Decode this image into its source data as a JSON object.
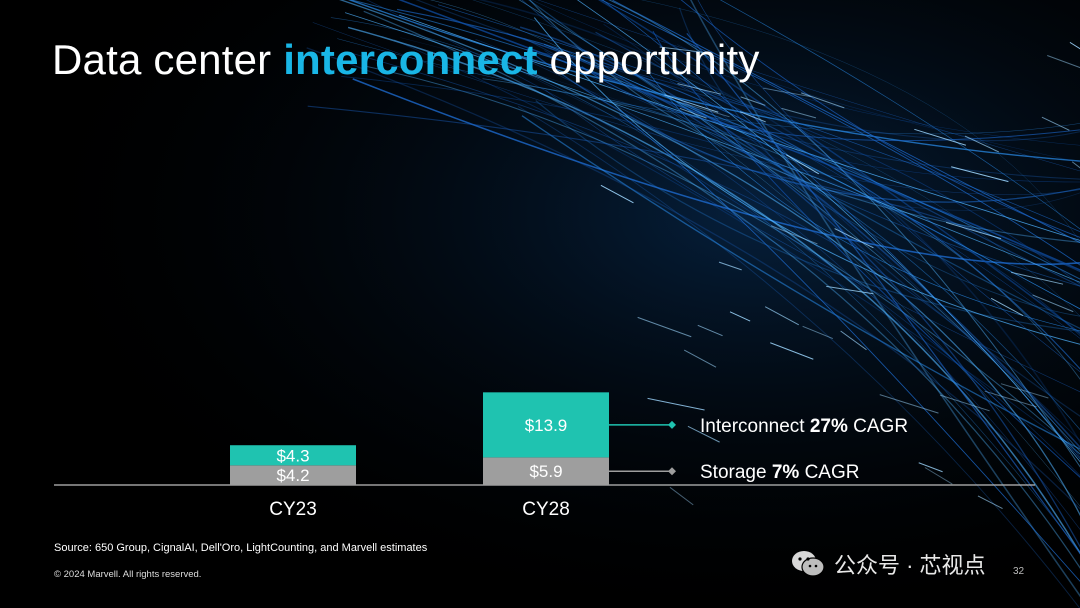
{
  "slide": {
    "title_pre": "Data center ",
    "title_highlight": "interconnect",
    "title_post": " opportunity",
    "source": "Source: 650 Group, CignalAI, Dell'Oro, LightCounting, and Marvell estimates",
    "copyright": "© 2024 Marvell. All rights reserved.",
    "page_number": "32",
    "watermark": "公众号 · 芯视点",
    "colors": {
      "interconnect": "#1fc3b0",
      "storage": "#9e9e9e",
      "accent": "#19b6e6"
    }
  },
  "chart_data": {
    "type": "bar",
    "stacked": true,
    "categories": [
      "CY23",
      "CY28"
    ],
    "series": [
      {
        "name": "Storage",
        "values": [
          4.2,
          5.9
        ],
        "labels": [
          "$4.2",
          "$5.9"
        ]
      },
      {
        "name": "Interconnect",
        "values": [
          4.3,
          13.9
        ],
        "labels": [
          "$4.3",
          "$13.9"
        ]
      }
    ],
    "annotations": [
      {
        "series": "Interconnect",
        "prefix": "Interconnect ",
        "bold": "27%",
        "suffix": " CAGR"
      },
      {
        "series": "Storage",
        "prefix": "Storage ",
        "bold": "7%",
        "suffix": " CAGR"
      }
    ]
  }
}
